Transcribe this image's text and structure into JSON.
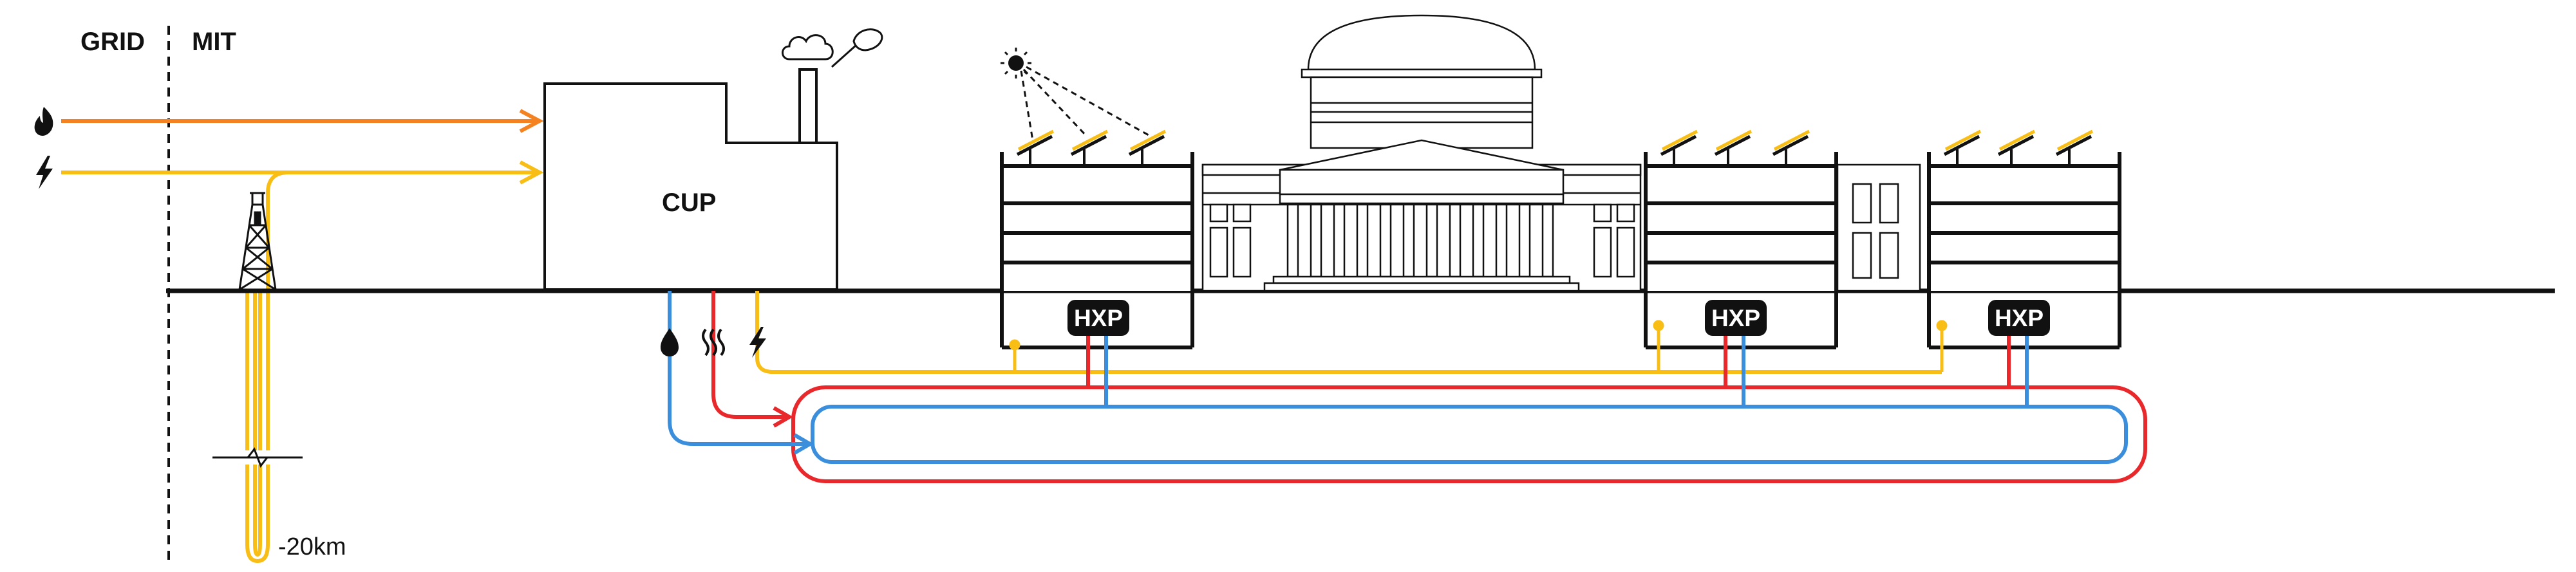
{
  "labels": {
    "grid": "GRID",
    "mit": "MIT",
    "cup": "CUP",
    "depth": "-20km"
  },
  "hxp_units": [
    {
      "label": "HXP"
    },
    {
      "label": "HXP"
    },
    {
      "label": "HXP"
    }
  ],
  "icons": {
    "gas": "flame-icon",
    "electricity": "lightning-icon",
    "water": "water-drop-icon",
    "heat": "heat-waves-icon",
    "power": "lightning-icon",
    "sun": "sun-icon",
    "cloud": "cloud-icon",
    "net": "butterfly-net-icon",
    "derrick": "drill-derrick-icon"
  },
  "colors": {
    "gas_line": "#F58220",
    "electric_line": "#F9BE16",
    "hot_loop": "#E8282B",
    "cold_loop": "#3A8EDB",
    "ink": "#111111"
  }
}
